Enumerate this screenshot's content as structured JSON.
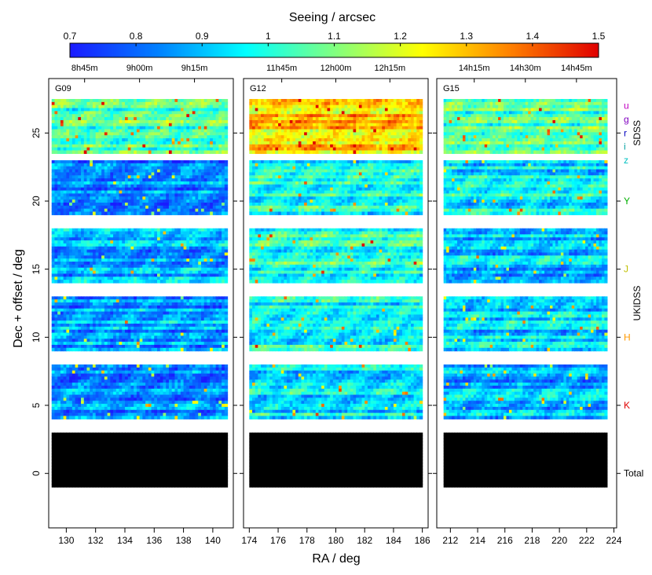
{
  "chart_data": {
    "type": "heatmap",
    "description_units": "Seeing per tile, RA vs Dec+offset, one horizontal strip per filter",
    "colorbar": {
      "title": "Seeing / arcsec",
      "range": [
        0.7,
        1.5
      ],
      "ticks": [
        "0.7",
        "0.8",
        "0.9",
        "1",
        "1.1",
        "1.2",
        "1.3",
        "1.4",
        "1.5"
      ],
      "stops": [
        "#1a1aff",
        "#0080ff",
        "#00ffff",
        "#80ff80",
        "#ffff00",
        "#ff8000",
        "#e00000"
      ]
    },
    "ylabel": "Dec + offset / deg",
    "xlabel": "RA / deg",
    "ylim": [
      -4,
      29
    ],
    "yticks": [
      0,
      5,
      10,
      15,
      20,
      25
    ],
    "fields": [
      {
        "name": "G09",
        "xlim": [
          128.8,
          141.4
        ],
        "xticks": [
          130,
          132,
          134,
          136,
          138,
          140
        ],
        "ra_range": [
          129.0,
          141.0
        ],
        "time_ticks": [
          {
            "ra": 131.25,
            "label": "8h45m"
          },
          {
            "ra": 135.0,
            "label": "9h00m"
          },
          {
            "ra": 138.75,
            "label": "9h15m"
          }
        ]
      },
      {
        "name": "G12",
        "xlim": [
          173.6,
          186.4
        ],
        "xticks": [
          174,
          176,
          178,
          180,
          182,
          184,
          186
        ],
        "ra_range": [
          174.0,
          186.0
        ],
        "time_ticks": [
          {
            "ra": 176.25,
            "label": "11h45m"
          },
          {
            "ra": 180.0,
            "label": "12h00m"
          },
          {
            "ra": 183.75,
            "label": "12h15m"
          }
        ]
      },
      {
        "name": "G15",
        "xlim": [
          211.0,
          224.2
        ],
        "xticks": [
          212,
          214,
          216,
          218,
          220,
          222,
          224
        ],
        "ra_range": [
          211.5,
          223.5
        ],
        "time_ticks": [
          {
            "ra": 213.75,
            "label": "14h15m"
          },
          {
            "ra": 217.5,
            "label": "14h30m"
          },
          {
            "ra": 221.25,
            "label": "14h45m"
          }
        ]
      }
    ],
    "bands": [
      {
        "name": "SDSS ugriz",
        "dec_range": [
          23.5,
          27.5
        ],
        "median_seeing": {
          "G09": 1.05,
          "G12": 1.3,
          "G15": 1.05
        }
      },
      {
        "name": "Y",
        "dec_range": [
          19,
          23
        ],
        "median_seeing": {
          "G09": 0.85,
          "G12": 0.98,
          "G15": 0.95
        }
      },
      {
        "name": "J",
        "dec_range": [
          14,
          18
        ],
        "median_seeing": {
          "G09": 0.88,
          "G12": 1.0,
          "G15": 0.9
        }
      },
      {
        "name": "H",
        "dec_range": [
          9,
          13
        ],
        "median_seeing": {
          "G09": 0.86,
          "G12": 0.98,
          "G15": 0.92
        }
      },
      {
        "name": "K",
        "dec_range": [
          4,
          8
        ],
        "median_seeing": {
          "G09": 0.85,
          "G12": 0.95,
          "G15": 0.88
        }
      },
      {
        "name": "Total",
        "dec_range": [
          -1,
          3
        ],
        "median_seeing": {
          "G09": null,
          "G12": null,
          "G15": null
        }
      }
    ],
    "band_labels": [
      {
        "text": "u",
        "color": "#c000c0",
        "dec": 27.0
      },
      {
        "text": "g",
        "color": "#8000c0",
        "dec": 26.0
      },
      {
        "text": "r",
        "color": "#0000c0",
        "dec": 25.0
      },
      {
        "text": "i",
        "color": "#00a0a0",
        "dec": 24.0
      },
      {
        "text": "z",
        "color": "#00c0c0",
        "dec": 23.0
      },
      {
        "text": "Y",
        "color": "#00b000",
        "dec": 20.0
      },
      {
        "text": "J",
        "color": "#c0c000",
        "dec": 15.0
      },
      {
        "text": "H",
        "color": "#ff9900",
        "dec": 10.0
      },
      {
        "text": "K",
        "color": "#e00000",
        "dec": 5.0
      },
      {
        "text": "Total",
        "color": "#000000",
        "dec": 0.0
      }
    ],
    "survey_labels": [
      {
        "text": "SDSS",
        "dec": 25.0
      },
      {
        "text": "UKIDSS",
        "dec": 12.5
      }
    ]
  }
}
